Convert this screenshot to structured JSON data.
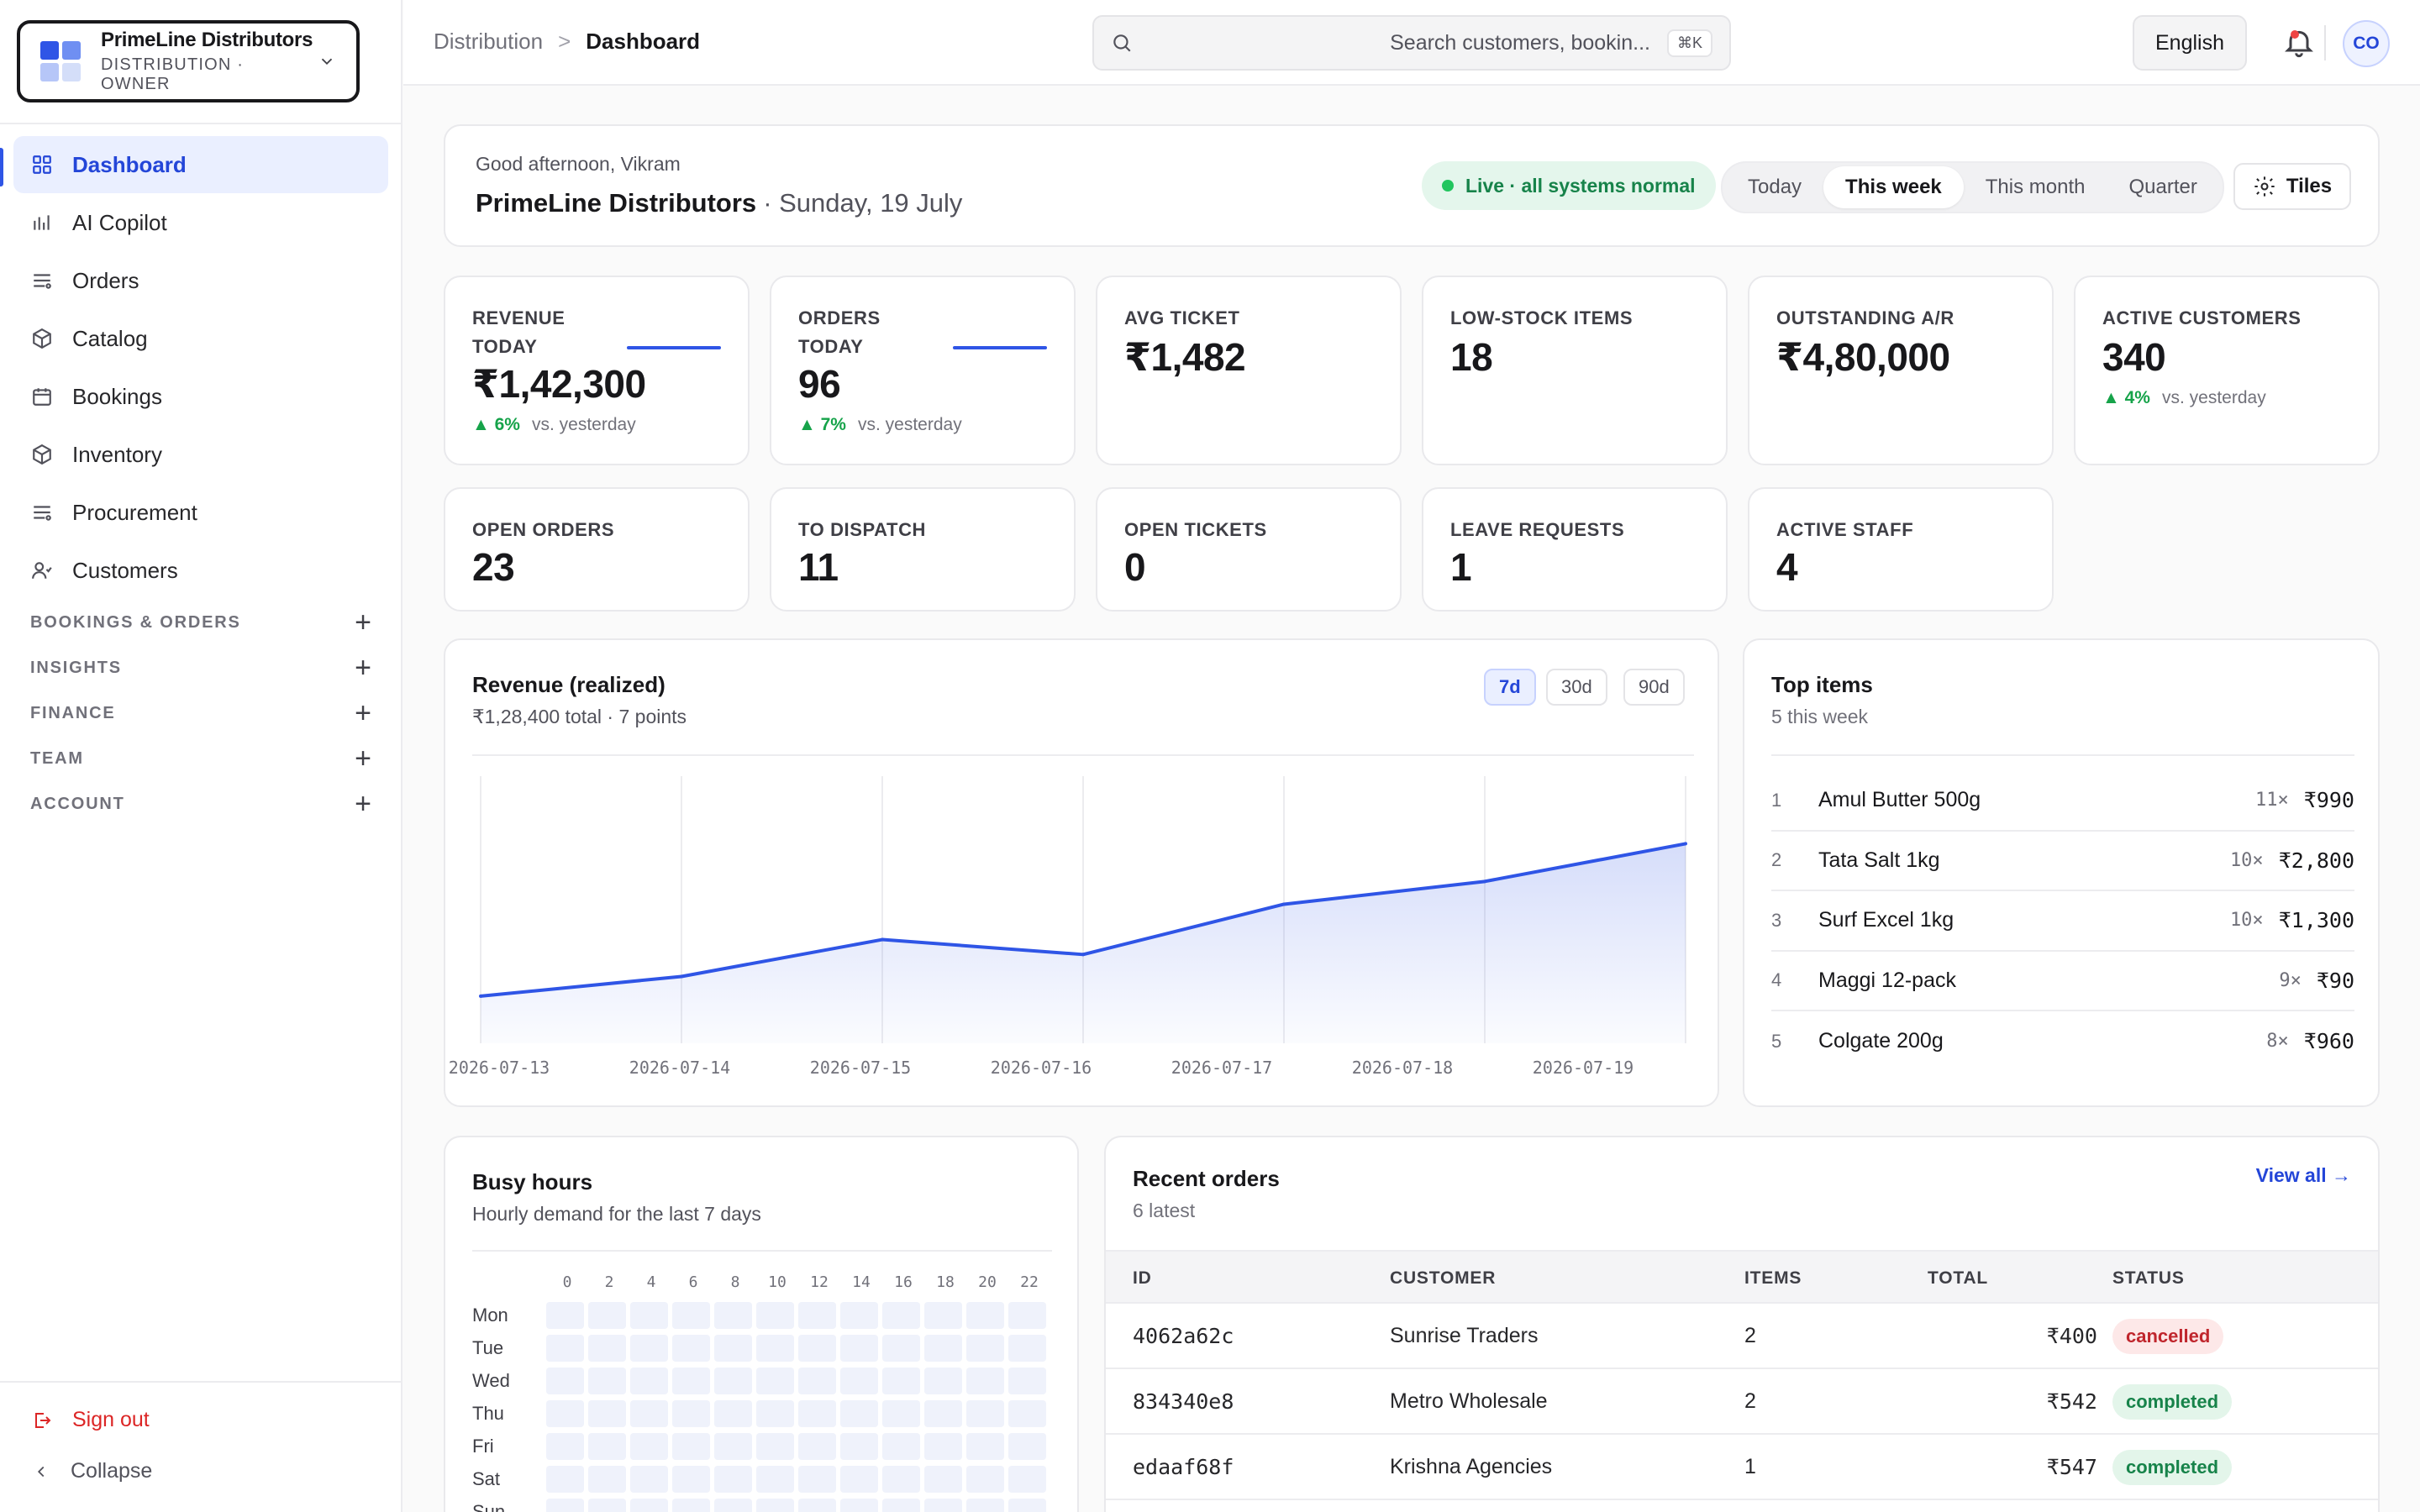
{
  "org": {
    "name": "PrimeLine Distributors",
    "role": "DISTRIBUTION · OWNER"
  },
  "nav": {
    "items": [
      {
        "label": "Dashboard",
        "icon": "grid-icon"
      },
      {
        "label": "AI Copilot",
        "icon": "bar-chart-icon"
      },
      {
        "label": "Orders",
        "icon": "list-icon"
      },
      {
        "label": "Catalog",
        "icon": "box-icon"
      },
      {
        "label": "Bookings",
        "icon": "calendar-icon"
      },
      {
        "label": "Inventory",
        "icon": "box-icon"
      },
      {
        "label": "Procurement",
        "icon": "list-icon"
      },
      {
        "label": "Customers",
        "icon": "users-icon"
      }
    ],
    "sections": [
      "BOOKINGS & ORDERS",
      "INSIGHTS",
      "FINANCE",
      "TEAM",
      "ACCOUNT"
    ],
    "signout": "Sign out",
    "collapse": "Collapse"
  },
  "topbar": {
    "crumb_parent": "Distribution",
    "crumb_sep": ">",
    "crumb_current": "Dashboard",
    "search_placeholder": "Search customers, bookin...",
    "search_shortcut": "⌘K",
    "language": "English",
    "avatar_initials": "CO"
  },
  "welcome": {
    "greeting": "Good afternoon, Vikram",
    "org": "PrimeLine Distributors",
    "date": "· Sunday, 19 July",
    "status": "Live · all systems normal",
    "periods": [
      "Today",
      "This week",
      "This month",
      "Quarter"
    ],
    "selected_period": "This week",
    "tiles_label": "Tiles"
  },
  "kpis_row1": [
    {
      "label_line1": "REVENUE",
      "label_line2": "TODAY",
      "value": "₹1,42,300",
      "delta": "6%",
      "vs": "vs. yesterday"
    },
    {
      "label_line1": "ORDERS",
      "label_line2": "TODAY",
      "value": "96",
      "delta": "7%",
      "vs": "vs. yesterday"
    },
    {
      "label_line1": "AVG TICKET",
      "value": "₹1,482"
    },
    {
      "label_line1": "LOW-STOCK ITEMS",
      "value": "18"
    },
    {
      "label_line1": "OUTSTANDING A/R",
      "value": "₹4,80,000"
    },
    {
      "label_line1": "ACTIVE CUSTOMERS",
      "value": "340",
      "delta": "4%",
      "vs": "vs. yesterday"
    }
  ],
  "kpis_row2": [
    {
      "label": "OPEN ORDERS",
      "value": "23"
    },
    {
      "label": "TO DISPATCH",
      "value": "11"
    },
    {
      "label": "OPEN TICKETS",
      "value": "0"
    },
    {
      "label": "LEAVE REQUESTS",
      "value": "1"
    },
    {
      "label": "ACTIVE STAFF",
      "value": "4"
    }
  ],
  "revenue": {
    "title": "Revenue (realized)",
    "subtitle": "₹1,28,400 total · 7 points",
    "ranges": [
      "7d",
      "30d",
      "90d"
    ],
    "selected_range": "7d"
  },
  "chart_data": {
    "type": "area",
    "title": "Revenue (realized)",
    "x": [
      "2026-07-13",
      "2026-07-14",
      "2026-07-15",
      "2026-07-16",
      "2026-07-17",
      "2026-07-18",
      "2026-07-19"
    ],
    "y_relative": [
      6,
      8.5,
      13.2,
      11.3,
      17.7,
      20.6,
      25.4
    ],
    "ylim": [
      0,
      34
    ],
    "grid": "vertical",
    "color": "#2f55e6"
  },
  "top_items": {
    "title": "Top items",
    "subtitle": "5 this week",
    "items": [
      {
        "rank": "1",
        "name": "Amul Butter 500g",
        "qty": "11×",
        "amount": "₹990"
      },
      {
        "rank": "2",
        "name": "Tata Salt 1kg",
        "qty": "10×",
        "amount": "₹2,800"
      },
      {
        "rank": "3",
        "name": "Surf Excel 1kg",
        "qty": "10×",
        "amount": "₹1,300"
      },
      {
        "rank": "4",
        "name": "Maggi 12-pack",
        "qty": "9×",
        "amount": "₹90"
      },
      {
        "rank": "5",
        "name": "Colgate 200g",
        "qty": "8×",
        "amount": "₹960"
      }
    ]
  },
  "busy_hours": {
    "title": "Busy hours",
    "subtitle": "Hourly demand for the last 7 days",
    "hours": [
      "0",
      "2",
      "4",
      "6",
      "8",
      "10",
      "12",
      "14",
      "16",
      "18",
      "20",
      "22"
    ],
    "days": [
      "Mon",
      "Tue",
      "Wed",
      "Thu",
      "Fri",
      "Sat",
      "Sun"
    ]
  },
  "recent_orders": {
    "title": "Recent orders",
    "subtitle": "6 latest",
    "view_all": "View all →",
    "columns": [
      "ID",
      "CUSTOMER",
      "ITEMS",
      "TOTAL",
      "STATUS"
    ],
    "rows": [
      {
        "id": "4062a62c",
        "customer": "Sunrise Traders",
        "items": "2",
        "total": "₹400",
        "status": "cancelled"
      },
      {
        "id": "834340e8",
        "customer": "Metro Wholesale",
        "items": "2",
        "total": "₹542",
        "status": "completed"
      },
      {
        "id": "edaaf68f",
        "customer": "Krishna Agencies",
        "items": "1",
        "total": "₹547",
        "status": "completed"
      }
    ]
  },
  "colors": {
    "accent": "#2f55e6",
    "success": "#16a34a",
    "danger": "#dc2626"
  }
}
